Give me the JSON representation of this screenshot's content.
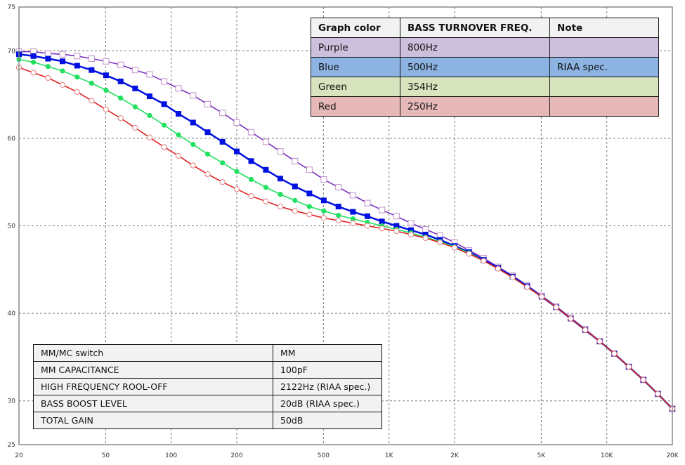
{
  "chart_data": {
    "type": "line",
    "title": "",
    "xlabel": "",
    "ylabel": "",
    "x_scale": "log",
    "xlim": [
      20,
      20000
    ],
    "ylim": [
      25,
      75
    ],
    "grid": true,
    "x_ticks": [
      20,
      50,
      100,
      200,
      500,
      1000,
      2000,
      5000,
      10000,
      20000
    ],
    "x_tick_labels": [
      "20",
      "50",
      "100",
      "200",
      "500",
      "1K",
      "2K",
      "5K",
      "10K",
      "20K"
    ],
    "y_ticks": [
      25,
      30,
      40,
      50,
      60,
      70,
      75
    ],
    "y_tick_labels": [
      "25",
      "30",
      "40",
      "50",
      "60",
      "70",
      "75"
    ],
    "x": [
      20,
      23.3,
      27.2,
      31.7,
      37,
      43.1,
      50.2,
      58.6,
      68.3,
      79.6,
      92.8,
      108,
      126,
      147,
      172,
      200,
      233,
      272,
      317,
      370,
      431,
      502,
      586,
      683,
      796,
      928,
      1082,
      1262,
      1471,
      1715,
      2000,
      2332,
      2719,
      3170,
      3696,
      4309,
      5024,
      5857,
      6829,
      7962,
      9283,
      10823,
      12619,
      14712,
      17153,
      20000
    ],
    "series": [
      {
        "color": "#7a2fc0",
        "marker": "hollow-square",
        "values": [
          69.9,
          69.9,
          69.7,
          69.6,
          69.4,
          69.1,
          68.8,
          68.4,
          67.8,
          67.3,
          66.5,
          65.7,
          64.9,
          63.9,
          62.9,
          61.8,
          60.7,
          59.6,
          58.5,
          57.4,
          56.4,
          55.3,
          54.4,
          53.5,
          52.6,
          51.8,
          51.1,
          50.3,
          49.6,
          48.9,
          48.1,
          47.2,
          46.3,
          45.3,
          44.3,
          43.2,
          42.0,
          40.8,
          39.5,
          38.2,
          36.8,
          35.4,
          33.9,
          32.4,
          30.8,
          29.1
        ]
      },
      {
        "color": "#0010e0",
        "marker": "filled-square",
        "values": [
          69.6,
          69.4,
          69.1,
          68.8,
          68.3,
          67.8,
          67.2,
          66.5,
          65.7,
          64.8,
          63.9,
          62.8,
          61.8,
          60.7,
          59.6,
          58.5,
          57.4,
          56.4,
          55.4,
          54.5,
          53.7,
          52.9,
          52.2,
          51.6,
          51.1,
          50.5,
          50.0,
          49.5,
          49.0,
          48.4,
          47.7,
          47.0,
          46.1,
          45.2,
          44.2,
          43.1,
          41.9,
          40.7,
          39.4,
          38.1,
          36.8,
          35.4,
          33.9,
          32.4,
          30.8,
          29.1
        ]
      },
      {
        "color": "#22e060",
        "marker": "filled-circle",
        "values": [
          69.0,
          68.7,
          68.2,
          67.7,
          67.0,
          66.3,
          65.5,
          64.6,
          63.6,
          62.6,
          61.5,
          60.4,
          59.3,
          58.2,
          57.2,
          56.2,
          55.3,
          54.4,
          53.6,
          52.9,
          52.2,
          51.7,
          51.2,
          50.8,
          50.4,
          50.0,
          49.6,
          49.2,
          48.7,
          48.2,
          47.6,
          46.9,
          46.0,
          45.1,
          44.1,
          43.0,
          41.9,
          40.7,
          39.4,
          38.1,
          36.8,
          35.4,
          33.9,
          32.4,
          30.8,
          29.1
        ]
      },
      {
        "color": "#e02020",
        "marker": "hollow-circle",
        "values": [
          68.1,
          67.5,
          66.9,
          66.1,
          65.3,
          64.3,
          63.3,
          62.3,
          61.2,
          60.1,
          59.0,
          58.0,
          56.9,
          55.9,
          55.0,
          54.2,
          53.4,
          52.8,
          52.2,
          51.7,
          51.3,
          50.9,
          50.6,
          50.3,
          50.0,
          49.7,
          49.4,
          49.0,
          48.6,
          48.1,
          47.5,
          46.8,
          46.0,
          45.1,
          44.1,
          43.0,
          41.9,
          40.7,
          39.4,
          38.1,
          36.8,
          35.4,
          33.9,
          32.4,
          30.8,
          29.1
        ]
      }
    ]
  },
  "legend_table": {
    "headers": [
      "Graph color",
      "BASS TURNOVER FREQ.",
      "Note"
    ],
    "rows": [
      {
        "color_name": "Purple",
        "freq": "800Hz",
        "note": "",
        "bg": "#ccc0dc"
      },
      {
        "color_name": "Blue",
        "freq": "500Hz",
        "note": "RIAA spec.",
        "bg": "#8db3e2"
      },
      {
        "color_name": "Green",
        "freq": "354Hz",
        "note": "",
        "bg": "#d7e4bd"
      },
      {
        "color_name": "Red",
        "freq": "250Hz",
        "note": "",
        "bg": "#e6b9b8"
      }
    ]
  },
  "spec_table": {
    "rows": [
      {
        "label": "MM/MC switch",
        "value": "MM"
      },
      {
        "label": "MM CAPACITANCE",
        "value": "100pF"
      },
      {
        "label": "HIGH FREQUENCY ROOL-OFF",
        "value": "2122Hz (RIAA spec.)"
      },
      {
        "label": "BASS BOOST LEVEL",
        "value": "20dB (RIAA spec.)"
      },
      {
        "label": "TOTAL GAIN",
        "value": "50dB"
      }
    ]
  }
}
